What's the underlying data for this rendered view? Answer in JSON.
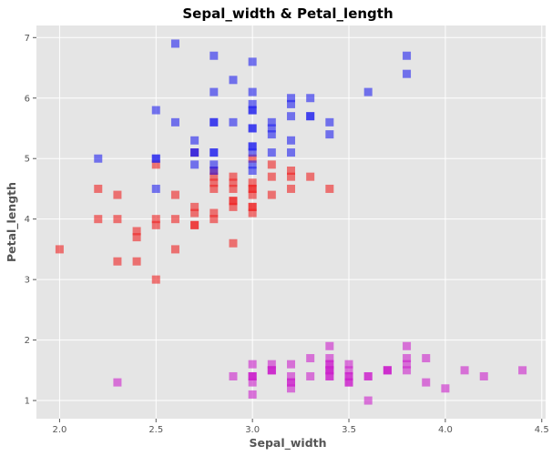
{
  "chart_data": {
    "type": "scatter",
    "title": "Sepal_width & Petal_length",
    "xlabel": "Sepal_width",
    "ylabel": "Petal_length",
    "xlim": [
      1.88,
      4.52
    ],
    "ylim": [
      0.7,
      7.2
    ],
    "xticks": [
      "2.0",
      "2.5",
      "3.0",
      "3.5",
      "4.0",
      "4.5"
    ],
    "yticks": [
      "1",
      "2",
      "3",
      "4",
      "5",
      "6",
      "7"
    ],
    "grid": true,
    "series": [
      {
        "color": "#cc22cc",
        "x": [
          3.5,
          3.0,
          3.2,
          3.1,
          3.6,
          3.9,
          3.4,
          3.4,
          2.9,
          3.1,
          3.7,
          3.4,
          3.0,
          3.0,
          4.0,
          4.4,
          3.9,
          3.5,
          3.8,
          3.8,
          3.4,
          3.7,
          3.6,
          3.3,
          3.4,
          3.0,
          3.4,
          3.5,
          3.4,
          3.2,
          3.1,
          3.4,
          4.1,
          4.2,
          3.1,
          3.2,
          3.5,
          3.6,
          3.0,
          3.4,
          3.5,
          2.3,
          3.2,
          3.5,
          3.8,
          3.0,
          3.8,
          3.2,
          3.7,
          3.3
        ],
        "y": [
          1.4,
          1.4,
          1.3,
          1.5,
          1.4,
          1.7,
          1.4,
          1.5,
          1.4,
          1.5,
          1.5,
          1.6,
          1.4,
          1.1,
          1.2,
          1.5,
          1.3,
          1.4,
          1.7,
          1.5,
          1.7,
          1.5,
          1.0,
          1.7,
          1.9,
          1.6,
          1.6,
          1.5,
          1.4,
          1.6,
          1.6,
          1.5,
          1.5,
          1.4,
          1.5,
          1.2,
          1.3,
          1.4,
          1.3,
          1.5,
          1.3,
          1.3,
          1.3,
          1.6,
          1.9,
          1.4,
          1.6,
          1.4,
          1.5,
          1.4
        ]
      },
      {
        "color": "#ee2222",
        "x": [
          3.2,
          3.2,
          3.1,
          2.3,
          2.8,
          2.8,
          3.3,
          2.4,
          2.9,
          2.7,
          2.0,
          3.0,
          2.2,
          2.9,
          2.9,
          3.1,
          3.0,
          2.7,
          2.2,
          2.5,
          3.2,
          2.8,
          2.5,
          2.8,
          2.9,
          3.0,
          2.8,
          3.0,
          2.9,
          2.6,
          2.4,
          2.4,
          2.7,
          2.7,
          3.0,
          3.4,
          3.1,
          2.3,
          3.0,
          2.5,
          2.6,
          3.0,
          2.6,
          2.3,
          2.7,
          3.0,
          2.9,
          2.9,
          2.5,
          2.8
        ],
        "y": [
          4.7,
          4.5,
          4.9,
          4.0,
          4.6,
          4.5,
          4.7,
          3.3,
          4.6,
          3.9,
          3.5,
          4.2,
          4.0,
          4.7,
          3.6,
          4.4,
          4.5,
          4.1,
          4.5,
          3.9,
          4.8,
          4.0,
          4.9,
          4.7,
          4.3,
          4.4,
          4.8,
          5.0,
          4.5,
          3.5,
          3.8,
          3.7,
          3.9,
          5.1,
          4.5,
          4.5,
          4.7,
          4.4,
          4.1,
          4.0,
          4.4,
          4.6,
          4.0,
          3.3,
          4.2,
          4.2,
          4.2,
          4.3,
          3.0,
          4.1
        ]
      },
      {
        "color": "#2222ee",
        "x": [
          3.3,
          2.7,
          3.0,
          2.9,
          3.0,
          3.0,
          2.5,
          2.9,
          2.5,
          3.6,
          3.2,
          2.7,
          3.0,
          2.5,
          2.8,
          3.2,
          3.0,
          3.8,
          2.6,
          2.2,
          3.2,
          2.8,
          2.8,
          2.7,
          3.3,
          3.2,
          2.8,
          3.0,
          2.8,
          3.0,
          2.8,
          3.8,
          2.8,
          2.8,
          2.6,
          3.0,
          3.4,
          3.1,
          3.0,
          3.1,
          3.1,
          3.1,
          2.7,
          3.2,
          3.3,
          3.0,
          2.5,
          3.0,
          3.4,
          3.0
        ],
        "y": [
          6.0,
          5.1,
          5.9,
          5.6,
          5.8,
          6.6,
          4.5,
          6.3,
          5.8,
          6.1,
          5.1,
          5.3,
          5.5,
          5.0,
          5.1,
          5.3,
          5.5,
          6.7,
          6.9,
          5.0,
          5.7,
          4.9,
          6.7,
          4.9,
          5.7,
          6.0,
          4.8,
          4.9,
          5.6,
          5.8,
          6.1,
          6.4,
          5.6,
          5.1,
          5.6,
          6.1,
          5.6,
          5.5,
          4.8,
          5.4,
          5.6,
          5.1,
          5.1,
          5.9,
          5.7,
          5.2,
          5.0,
          5.2,
          5.4,
          5.1
        ]
      }
    ]
  }
}
